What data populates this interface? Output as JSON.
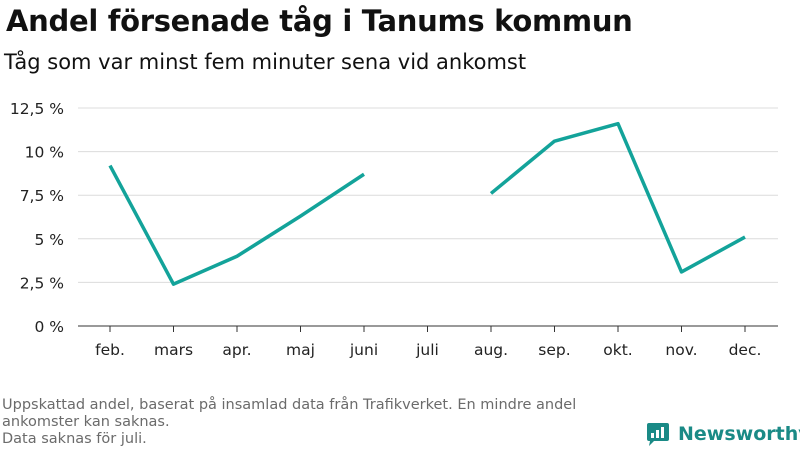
{
  "title": "Andel försenade tåg i Tanums kommun",
  "subtitle": "Tåg som var minst fem minuter sena vid ankomst",
  "footnote": {
    "line1": "Uppskattad andel, baserat på insamlad data från Trafikverket. En mindre andel ankomster kan saknas.",
    "line2": "Data saknas för juli."
  },
  "brand": {
    "name": "Newsworthy",
    "icon": "bar-chart-icon",
    "color": "#1a8a86"
  },
  "chart_data": {
    "type": "line",
    "categories": [
      "feb.",
      "mars",
      "apr.",
      "maj",
      "juni",
      "juli",
      "aug.",
      "sep.",
      "okt.",
      "nov.",
      "dec."
    ],
    "series": [
      {
        "values": [
          9.2,
          2.4,
          4.0,
          6.3,
          8.7,
          null,
          7.6,
          10.6,
          11.6,
          3.1,
          5.1
        ]
      }
    ],
    "yticks": [
      0,
      2.5,
      5,
      7.5,
      10,
      12.5
    ],
    "ytick_labels": [
      "0 %",
      "2,5 %",
      "5 %",
      "7,5 %",
      "10 %",
      "12,5 %"
    ],
    "ylim": [
      0,
      12.5
    ],
    "grid": true,
    "line_color": "#13a39a",
    "grid_color": "#dcdcdc"
  }
}
